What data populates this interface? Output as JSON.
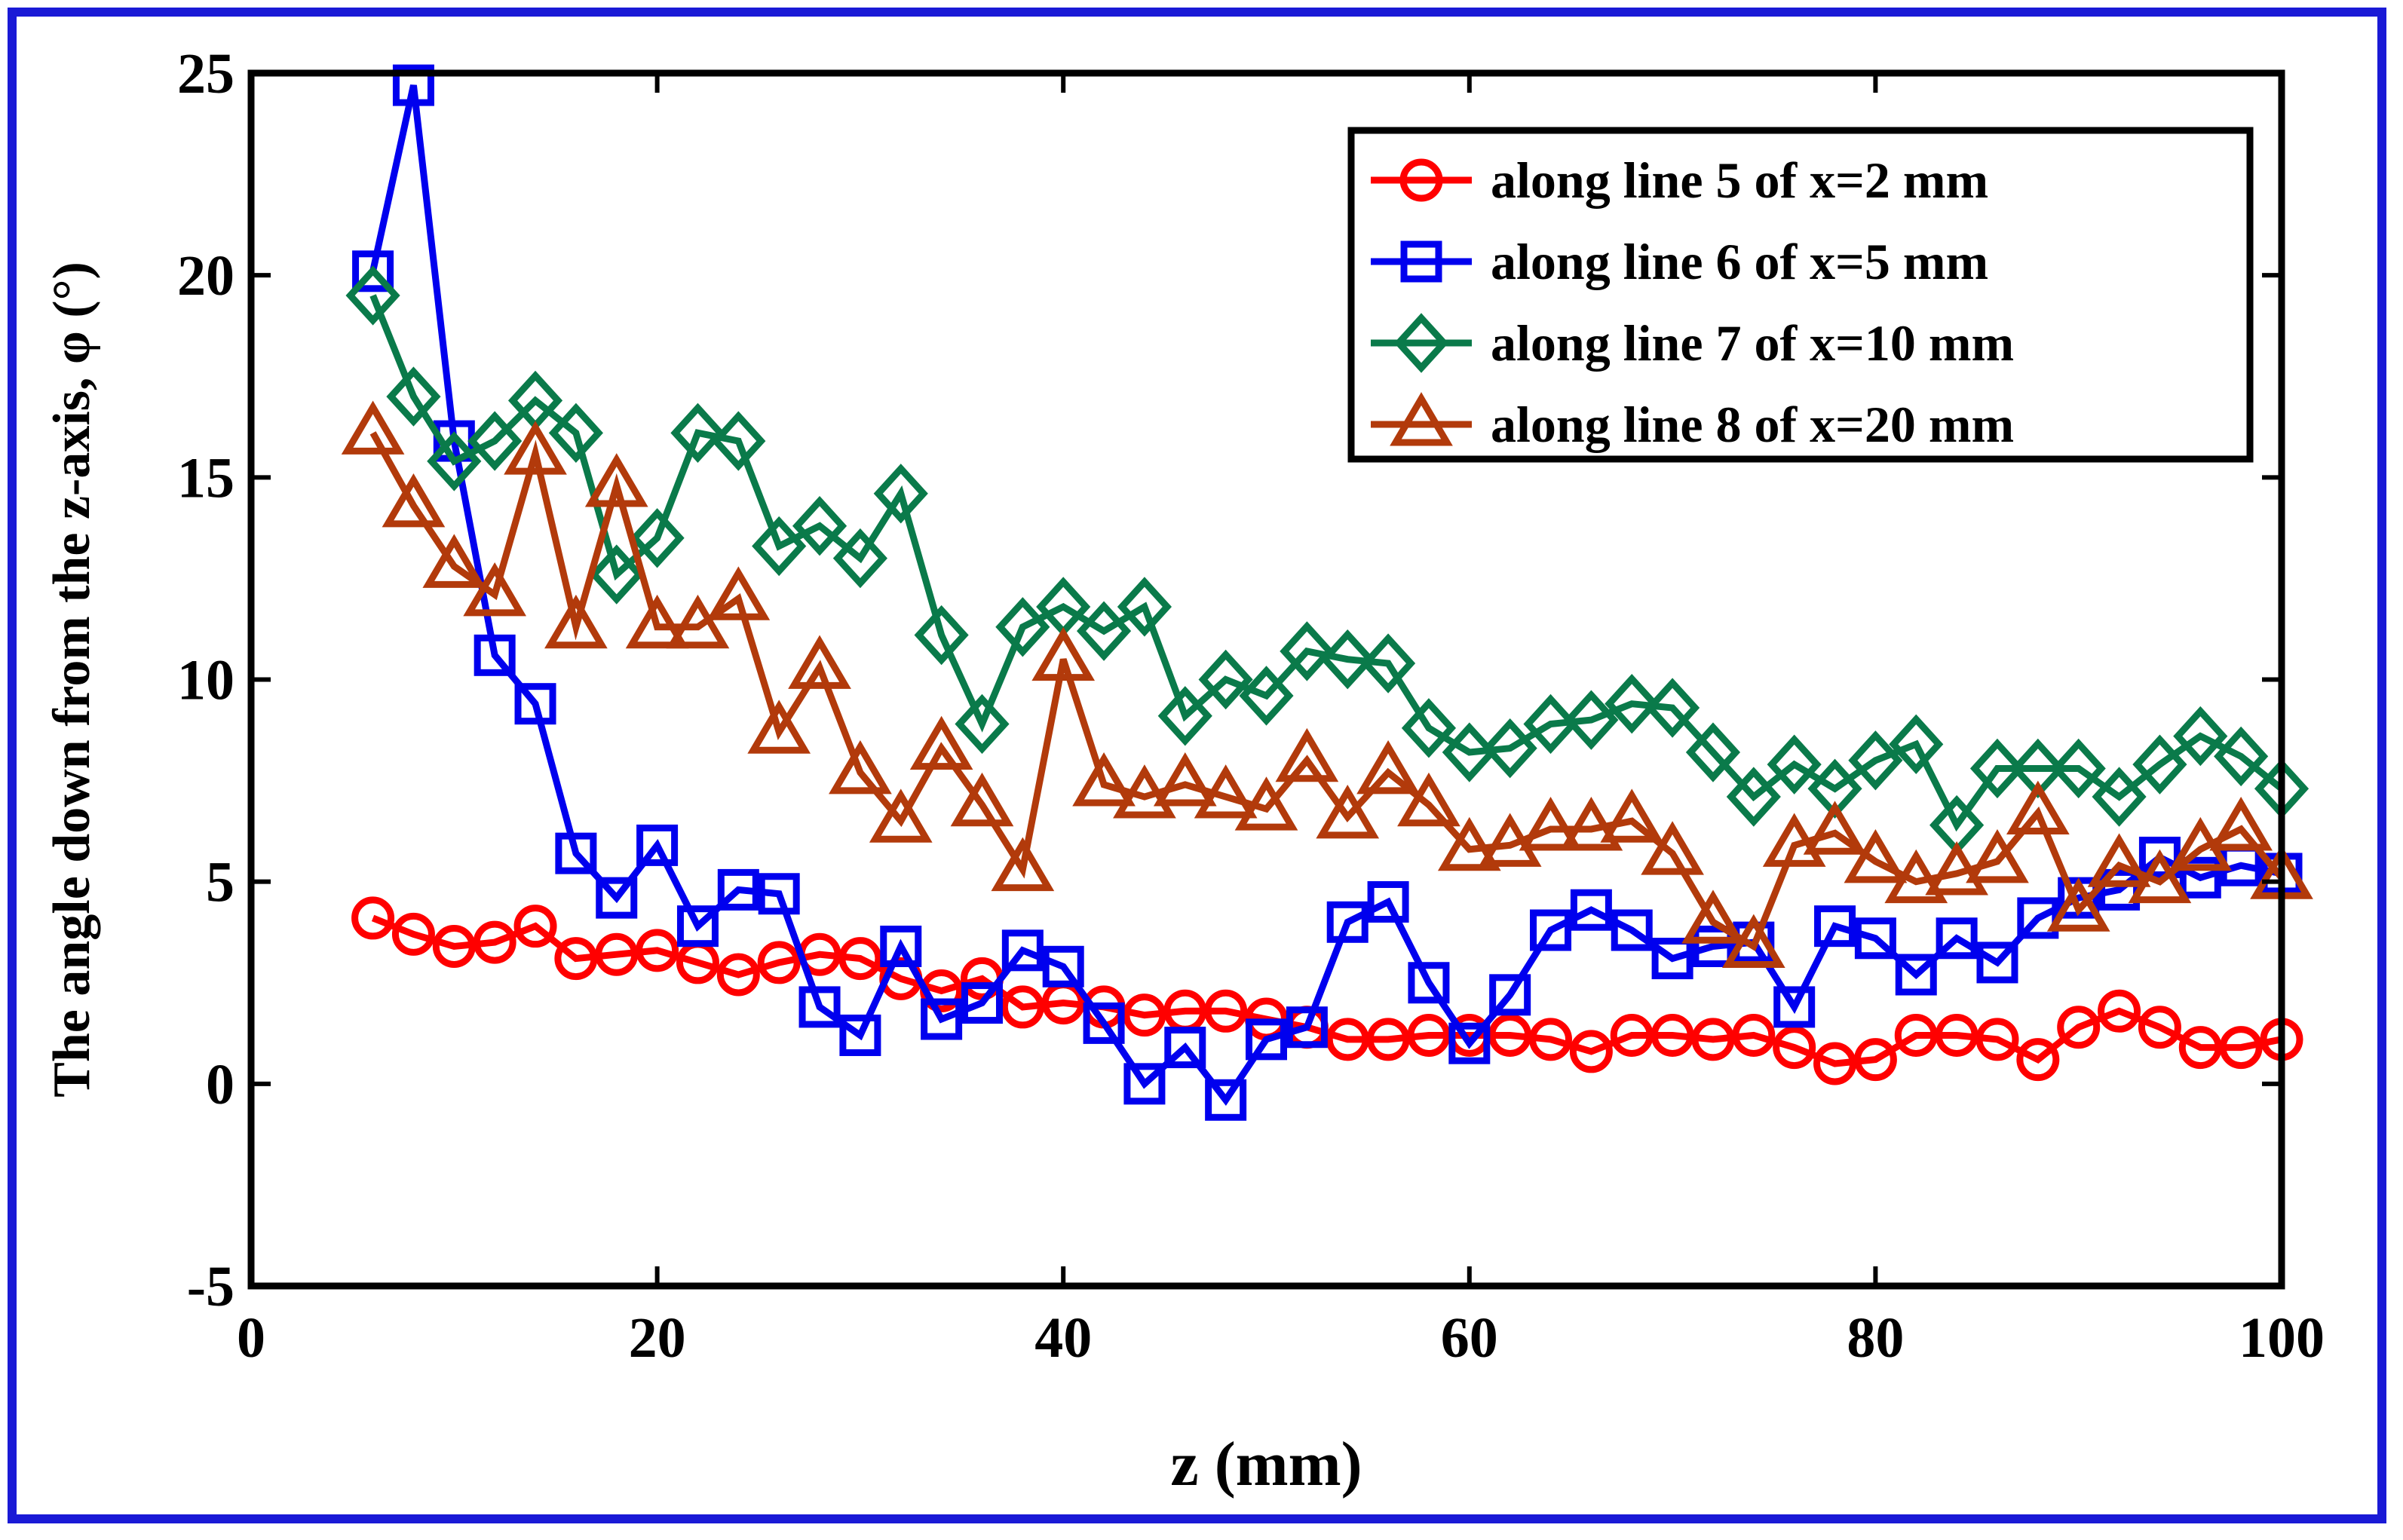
{
  "chart_data": {
    "type": "line",
    "title": "",
    "xlabel": "z (mm)",
    "ylabel": "The angle down from the z-axis, φ (°)",
    "xlim": [
      0,
      100
    ],
    "ylim": [
      -5,
      25
    ],
    "xticks": [
      "0",
      "20",
      "40",
      "60",
      "80",
      "100"
    ],
    "yticks": [
      "-5",
      "0",
      "5",
      "10",
      "15",
      "20",
      "25"
    ],
    "grid": false,
    "legend_position": "top-right",
    "x": [
      6,
      8,
      10,
      12,
      14,
      16,
      18,
      20,
      22,
      24,
      26,
      28,
      30,
      32,
      34,
      36,
      38,
      40,
      42,
      44,
      46,
      48,
      50,
      52,
      54,
      56,
      58,
      60,
      62,
      64,
      66,
      68,
      70,
      72,
      74,
      76,
      78,
      80,
      82,
      84,
      86,
      88,
      90,
      92,
      94,
      96,
      98,
      100
    ],
    "series": [
      {
        "name": "along line 5 of x=2 mm",
        "color": "#ff0000",
        "marker": "circle",
        "values": [
          4.1,
          3.7,
          3.4,
          3.5,
          3.9,
          3.1,
          3.2,
          3.3,
          3.0,
          2.7,
          3.0,
          3.2,
          3.1,
          2.6,
          2.3,
          2.6,
          1.9,
          2.0,
          1.9,
          1.7,
          1.8,
          1.8,
          1.6,
          1.4,
          1.1,
          1.1,
          1.2,
          1.2,
          1.2,
          1.1,
          0.8,
          1.2,
          1.2,
          1.1,
          1.2,
          0.9,
          0.5,
          0.6,
          1.2,
          1.2,
          1.1,
          0.6,
          1.4,
          1.8,
          1.4,
          0.9,
          0.9,
          1.1
        ]
      },
      {
        "name": "along line 6 of x=5 mm",
        "color": "#0000ee",
        "marker": "square",
        "values": [
          20.1,
          24.7,
          15.9,
          10.6,
          9.4,
          5.7,
          4.6,
          5.9,
          3.9,
          4.8,
          4.7,
          1.9,
          1.2,
          3.4,
          1.6,
          2.0,
          3.3,
          2.9,
          1.5,
          0.0,
          0.9,
          -0.4,
          1.1,
          1.4,
          4.0,
          4.5,
          2.5,
          1.0,
          2.2,
          3.8,
          4.3,
          3.8,
          3.1,
          3.4,
          3.5,
          1.9,
          3.9,
          3.6,
          2.7,
          3.6,
          3.0,
          4.1,
          4.6,
          4.8,
          5.6,
          5.1,
          5.4,
          5.2
        ]
      },
      {
        "name": "along line 7 of x=10 mm",
        "color": "#0a7a4a",
        "marker": "diamond",
        "values": [
          19.5,
          17.0,
          15.4,
          15.9,
          16.9,
          16.1,
          12.6,
          13.5,
          16.1,
          15.9,
          13.3,
          13.8,
          13.0,
          14.6,
          11.1,
          8.9,
          11.3,
          11.8,
          11.2,
          11.8,
          9.1,
          10.0,
          9.6,
          10.7,
          10.5,
          10.4,
          8.8,
          8.2,
          8.3,
          8.9,
          9.0,
          9.4,
          9.3,
          8.2,
          7.1,
          7.9,
          7.3,
          8.0,
          8.4,
          6.4,
          7.8,
          7.8,
          7.8,
          7.1,
          7.9,
          8.6,
          8.1,
          7.3
        ]
      },
      {
        "name": "along line 8 of x=20 mm",
        "color": "#b23a0b",
        "marker": "triangle",
        "values": [
          16.1,
          14.3,
          12.8,
          12.1,
          15.6,
          11.3,
          14.8,
          11.3,
          11.3,
          12.0,
          8.7,
          10.3,
          7.7,
          6.5,
          8.3,
          6.9,
          5.3,
          10.5,
          7.4,
          7.1,
          7.4,
          7.1,
          6.8,
          8.0,
          6.6,
          7.7,
          6.9,
          5.8,
          5.9,
          6.3,
          6.3,
          6.5,
          5.7,
          4.0,
          3.4,
          5.9,
          6.2,
          5.5,
          5.0,
          5.2,
          5.5,
          6.7,
          4.3,
          5.4,
          5.0,
          5.8,
          6.3,
          5.1
        ]
      }
    ]
  }
}
